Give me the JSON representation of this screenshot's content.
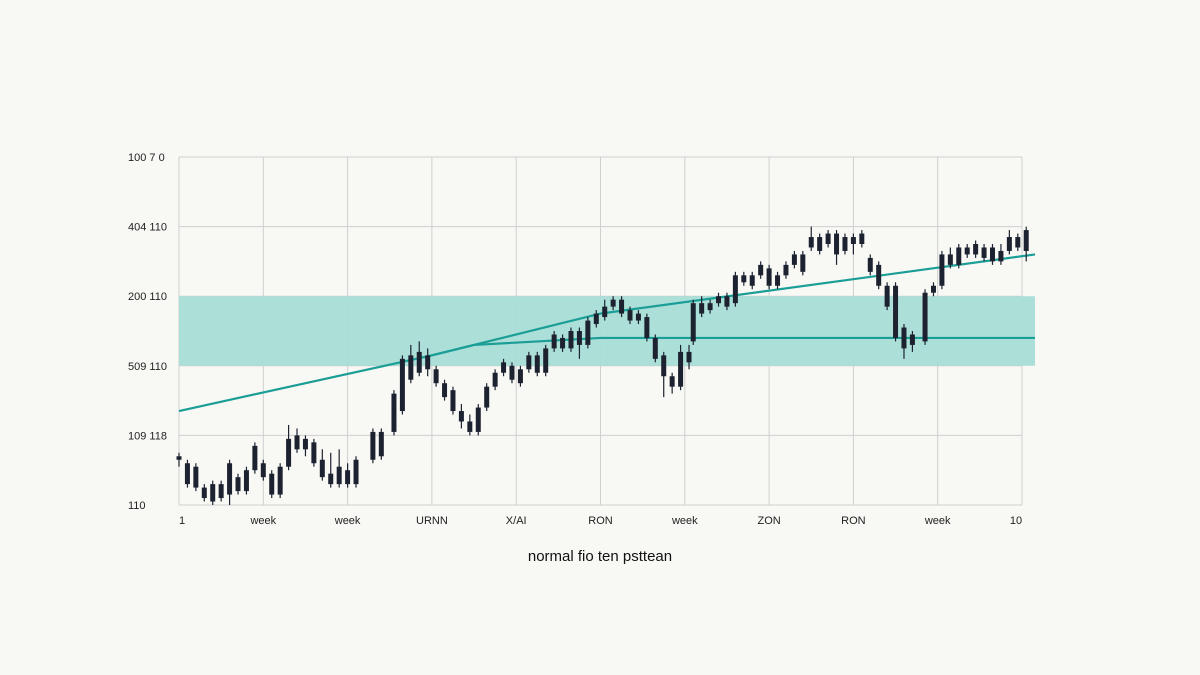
{
  "chart_data": {
    "type": "candlestick",
    "xlabel": "normal fio ten psttean",
    "y_tick_labels": [
      "110",
      "109 118",
      "509 110",
      "200 110",
      "404 110",
      "100 7 0"
    ],
    "x_tick_labels": [
      "1",
      "week",
      "week",
      "URNN",
      "X/AI",
      "RON",
      "week",
      "ZON",
      "RON",
      "week",
      "10"
    ],
    "ylim": [
      0,
      5
    ],
    "xlim": [
      0,
      10
    ],
    "grid": true,
    "band": {
      "low": 2,
      "high": 3,
      "color": "#a8ddd6"
    },
    "lines": [
      {
        "color": "#1a9e96",
        "points": [
          [
            0,
            1.35
          ],
          [
            3,
            2.15
          ],
          [
            5,
            2.75
          ],
          [
            10,
            3.6
          ]
        ]
      },
      {
        "color": "#1a9e96",
        "points": [
          [
            2.9,
            2.12
          ],
          [
            3.5,
            2.3
          ],
          [
            5,
            2.4
          ],
          [
            10,
            2.4
          ]
        ]
      }
    ],
    "candle_color": "#1c2230",
    "candles": [
      [
        0.0,
        0.65,
        0.7,
        0.55,
        0.75
      ],
      [
        0.1,
        0.6,
        0.3,
        0.25,
        0.65
      ],
      [
        0.2,
        0.55,
        0.25,
        0.2,
        0.6
      ],
      [
        0.3,
        0.25,
        0.1,
        0.05,
        0.3
      ],
      [
        0.4,
        0.3,
        0.05,
        0.0,
        0.35
      ],
      [
        0.5,
        0.1,
        0.3,
        0.05,
        0.35
      ],
      [
        0.6,
        0.15,
        0.6,
        0.0,
        0.65
      ],
      [
        0.7,
        0.4,
        0.2,
        0.15,
        0.45
      ],
      [
        0.8,
        0.2,
        0.5,
        0.15,
        0.55
      ],
      [
        0.9,
        0.5,
        0.85,
        0.45,
        0.9
      ],
      [
        1.0,
        0.6,
        0.4,
        0.35,
        0.65
      ],
      [
        1.1,
        0.45,
        0.15,
        0.1,
        0.5
      ],
      [
        1.2,
        0.15,
        0.55,
        0.1,
        0.6
      ],
      [
        1.3,
        0.55,
        0.95,
        0.5,
        1.15
      ],
      [
        1.4,
        1.0,
        0.8,
        0.75,
        1.1
      ],
      [
        1.5,
        0.8,
        0.95,
        0.7,
        1.0
      ],
      [
        1.6,
        0.9,
        0.6,
        0.55,
        0.95
      ],
      [
        1.7,
        0.65,
        0.4,
        0.35,
        0.8
      ],
      [
        1.8,
        0.45,
        0.3,
        0.25,
        0.75
      ],
      [
        1.9,
        0.3,
        0.55,
        0.25,
        0.8
      ],
      [
        2.0,
        0.5,
        0.3,
        0.25,
        0.6
      ],
      [
        2.1,
        0.3,
        0.65,
        0.25,
        0.7
      ],
      [
        2.3,
        0.65,
        1.05,
        0.6,
        1.1
      ],
      [
        2.4,
        0.7,
        1.05,
        0.65,
        1.1
      ],
      [
        2.55,
        1.05,
        1.6,
        1.0,
        1.65
      ],
      [
        2.65,
        1.35,
        2.1,
        1.3,
        2.15
      ],
      [
        2.75,
        1.8,
        2.15,
        1.75,
        2.3
      ],
      [
        2.85,
        1.9,
        2.2,
        1.85,
        2.35
      ],
      [
        2.95,
        2.15,
        1.95,
        1.85,
        2.25
      ],
      [
        3.05,
        1.95,
        1.75,
        1.7,
        2.0
      ],
      [
        3.15,
        1.75,
        1.55,
        1.5,
        1.8
      ],
      [
        3.25,
        1.65,
        1.35,
        1.3,
        1.7
      ],
      [
        3.35,
        1.35,
        1.2,
        1.1,
        1.45
      ],
      [
        3.45,
        1.2,
        1.05,
        1.0,
        1.3
      ],
      [
        3.55,
        1.05,
        1.4,
        1.0,
        1.45
      ],
      [
        3.65,
        1.4,
        1.7,
        1.35,
        1.75
      ],
      [
        3.75,
        1.7,
        1.9,
        1.65,
        1.95
      ],
      [
        3.85,
        1.9,
        2.05,
        1.85,
        2.1
      ],
      [
        3.95,
        2.0,
        1.8,
        1.75,
        2.05
      ],
      [
        4.05,
        1.75,
        1.95,
        1.7,
        2.0
      ],
      [
        4.15,
        1.95,
        2.15,
        1.9,
        2.2
      ],
      [
        4.25,
        2.15,
        1.9,
        1.85,
        2.2
      ],
      [
        4.35,
        1.9,
        2.25,
        1.85,
        2.3
      ],
      [
        4.45,
        2.25,
        2.45,
        2.2,
        2.5
      ],
      [
        4.55,
        2.4,
        2.25,
        2.2,
        2.45
      ],
      [
        4.65,
        2.25,
        2.5,
        2.2,
        2.55
      ],
      [
        4.75,
        2.5,
        2.3,
        2.1,
        2.55
      ],
      [
        4.85,
        2.3,
        2.65,
        2.25,
        2.7
      ],
      [
        4.95,
        2.6,
        2.75,
        2.55,
        2.8
      ],
      [
        5.05,
        2.7,
        2.85,
        2.65,
        2.95
      ],
      [
        5.15,
        2.85,
        2.95,
        2.8,
        3.0
      ],
      [
        5.25,
        2.95,
        2.75,
        2.7,
        3.0
      ],
      [
        5.35,
        2.8,
        2.65,
        2.6,
        2.85
      ],
      [
        5.45,
        2.65,
        2.75,
        2.6,
        2.8
      ],
      [
        5.55,
        2.7,
        2.4,
        2.35,
        2.75
      ],
      [
        5.65,
        2.4,
        2.1,
        2.05,
        2.45
      ],
      [
        5.75,
        2.15,
        1.85,
        1.55,
        2.2
      ],
      [
        5.85,
        1.85,
        1.7,
        1.6,
        1.9
      ],
      [
        5.95,
        1.7,
        2.2,
        1.65,
        2.3
      ],
      [
        6.05,
        2.2,
        2.05,
        1.95,
        2.3
      ],
      [
        6.1,
        2.35,
        2.9,
        2.3,
        2.95
      ],
      [
        6.2,
        2.9,
        2.75,
        2.7,
        3.0
      ],
      [
        6.3,
        2.8,
        2.9,
        2.75,
        2.95
      ],
      [
        6.4,
        2.9,
        3.0,
        2.85,
        3.05
      ],
      [
        6.5,
        3.0,
        2.85,
        2.8,
        3.05
      ],
      [
        6.6,
        2.9,
        3.3,
        2.85,
        3.35
      ],
      [
        6.7,
        3.3,
        3.2,
        3.15,
        3.35
      ],
      [
        6.8,
        3.15,
        3.3,
        3.1,
        3.35
      ],
      [
        6.9,
        3.3,
        3.45,
        3.25,
        3.5
      ],
      [
        7.0,
        3.4,
        3.15,
        3.1,
        3.45
      ],
      [
        7.1,
        3.15,
        3.3,
        3.1,
        3.35
      ],
      [
        7.2,
        3.3,
        3.45,
        3.25,
        3.5
      ],
      [
        7.3,
        3.45,
        3.6,
        3.4,
        3.65
      ],
      [
        7.4,
        3.6,
        3.35,
        3.3,
        3.65
      ],
      [
        7.5,
        3.7,
        3.85,
        3.65,
        4.0
      ],
      [
        7.6,
        3.85,
        3.65,
        3.6,
        3.9
      ],
      [
        7.7,
        3.75,
        3.9,
        3.7,
        3.95
      ],
      [
        7.8,
        3.9,
        3.6,
        3.45,
        3.95
      ],
      [
        7.9,
        3.65,
        3.85,
        3.6,
        3.9
      ],
      [
        8.0,
        3.85,
        3.75,
        3.6,
        3.9
      ],
      [
        8.1,
        3.75,
        3.9,
        3.7,
        3.95
      ],
      [
        8.2,
        3.55,
        3.35,
        3.3,
        3.6
      ],
      [
        8.3,
        3.45,
        3.15,
        3.1,
        3.5
      ],
      [
        8.4,
        3.15,
        2.85,
        2.8,
        3.2
      ],
      [
        8.5,
        3.15,
        2.4,
        2.35,
        3.2
      ],
      [
        8.6,
        2.55,
        2.25,
        2.1,
        2.6
      ],
      [
        8.7,
        2.45,
        2.3,
        2.2,
        2.5
      ],
      [
        8.85,
        2.35,
        3.05,
        2.3,
        3.1
      ],
      [
        8.95,
        3.05,
        3.15,
        3.0,
        3.2
      ],
      [
        9.05,
        3.15,
        3.6,
        3.1,
        3.65
      ],
      [
        9.15,
        3.6,
        3.45,
        3.4,
        3.7
      ],
      [
        9.25,
        3.45,
        3.7,
        3.4,
        3.75
      ],
      [
        9.35,
        3.7,
        3.6,
        3.55,
        3.75
      ],
      [
        9.45,
        3.6,
        3.75,
        3.55,
        3.8
      ],
      [
        9.55,
        3.55,
        3.7,
        3.5,
        3.75
      ],
      [
        9.65,
        3.7,
        3.5,
        3.45,
        3.75
      ],
      [
        9.75,
        3.5,
        3.65,
        3.45,
        3.75
      ],
      [
        9.85,
        3.65,
        3.85,
        3.6,
        3.95
      ],
      [
        9.95,
        3.85,
        3.7,
        3.65,
        3.9
      ],
      [
        10.05,
        3.65,
        3.95,
        3.5,
        4.0
      ]
    ]
  }
}
